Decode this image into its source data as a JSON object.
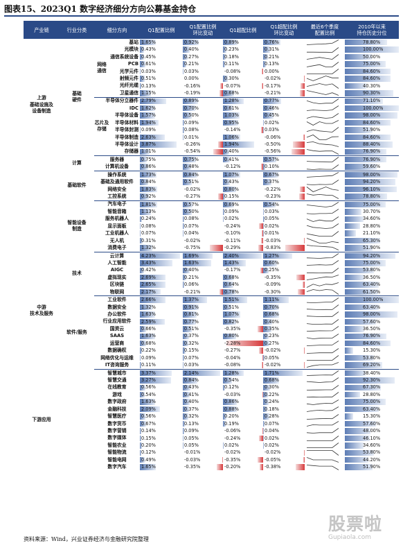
{
  "title": "图表15、2023Q1 数字经济细分方向公募基金持仓",
  "source": "资料来源：Wind，兴业证券经济与金融研究院整理",
  "watermark": {
    "big": "股票啦",
    "small": "Gupiaola.com"
  },
  "headers": [
    "产业链",
    "行业分类",
    "细分方向",
    "Q1配置比例",
    "Q1配置比例\n环比变动",
    "Q1超配比例",
    "Q1超配比例\n环比变动",
    "最近6个季度\n配置比例",
    "2010年以来\n持仓历史分位"
  ],
  "groups": {
    "upstream": "上游\n基础设施及\n设备制造",
    "midstream": "中游\n技术及服务",
    "downstream": "下游应用",
    "hardware": "基础\n硬件",
    "network": "网络\n通信",
    "chip": "芯片及\n存储",
    "compute": "计算",
    "software": "基础软件",
    "devices": "智能设备\n制造",
    "tech": "技术",
    "service": "软件/服务"
  },
  "rows": [
    [
      "基站",
      "1.65%",
      "0.92%",
      "0.89%",
      "0.76%",
      "78.80%"
    ],
    [
      "光模块",
      "0.43%",
      "0.40%",
      "0.23%",
      "0.31%",
      "100.00%"
    ],
    [
      "通信系统设备",
      "0.45%",
      "0.27%",
      "0.18%",
      "0.21%",
      "50.00%"
    ],
    [
      "PCB",
      "0.61%",
      "0.21%",
      "0.11%",
      "0.13%",
      "75.00%"
    ],
    [
      "光学元件",
      "0.03%",
      "0.03%",
      "-0.08%",
      "0.00%",
      "84.60%"
    ],
    [
      "射频元件",
      "0.51%",
      "0.00%",
      "0.30%",
      "-0.02%",
      "84.60%"
    ],
    [
      "光纤光缆",
      "0.13%",
      "-0.16%",
      "-0.07%",
      "-0.17%",
      "40.30%"
    ],
    [
      "卫星通信",
      "1.15%",
      "-0.19%",
      "0.68%",
      "-0.21%",
      "90.30%"
    ],
    [
      "半导体分立器件",
      "2.79%",
      "0.89%",
      "1.28%",
      "0.77%",
      "71.10%"
    ],
    [
      "IDC",
      "1.62%",
      "0.70%",
      "0.61%",
      "0.46%",
      "100.00%"
    ],
    [
      "半导体设备",
      "1.57%",
      "0.50%",
      "1.03%",
      "0.45%",
      "98.00%"
    ],
    [
      "半导体材料",
      "1.94%",
      "0.09%",
      "0.95%",
      "0.02%",
      "84.60%"
    ],
    [
      "半导体封测",
      "0.09%",
      "0.08%",
      "-0.14%",
      "0.03%",
      "51.90%"
    ],
    [
      "半导体制造",
      "2.63%",
      "0.01%",
      "1.06%",
      "-0.06%",
      "84.60%"
    ],
    [
      "半导体设计",
      "3.87%",
      "-0.26%",
      "1.94%",
      "-0.50%",
      "88.40%"
    ],
    [
      "存储器",
      "1.01%",
      "-0.54%",
      "0.40%",
      "-0.56%",
      "76.90%"
    ],
    [
      "服务器",
      "0.75%",
      "0.75%",
      "0.41%",
      "0.57%",
      "76.90%"
    ],
    [
      "计算机设备",
      "0.86%",
      "0.48%",
      "-0.12%",
      "0.10%",
      "59.60%"
    ],
    [
      "操作系统",
      "1.73%",
      "0.84%",
      "1.07%",
      "0.67%",
      "98.00%"
    ],
    [
      "基础及通用软件",
      "0.84%",
      "0.51%",
      "0.43%",
      "0.37%",
      "94.20%"
    ],
    [
      "网络安全",
      "1.83%",
      "-0.02%",
      "0.80%",
      "-0.22%",
      "96.10%"
    ],
    [
      "工控系统",
      "0.92%",
      "-0.27%",
      "0.15%",
      "-0.23%",
      "78.80%"
    ],
    [
      "汽车电子",
      "1.81%",
      "0.57%",
      "0.69%",
      "0.54%",
      "75.00%"
    ],
    [
      "智能音箱",
      "1.13%",
      "0.50%",
      "0.09%",
      "0.03%",
      "30.70%"
    ],
    [
      "服务机器人",
      "0.24%",
      "0.08%",
      "0.02%",
      "0.05%",
      "34.60%"
    ],
    [
      "显示面板",
      "0.08%",
      "0.07%",
      "-0.24%",
      "0.02%",
      "28.80%"
    ],
    [
      "工业机器人",
      "0.07%",
      "0.04%",
      "-0.10%",
      "0.01%",
      "21.10%"
    ],
    [
      "无人机",
      "0.31%",
      "-0.02%",
      "-0.11%",
      "-0.03%",
      "65.30%"
    ],
    [
      "消费电子",
      "1.32%",
      "-0.75%",
      "-0.29%",
      "-0.83%",
      "51.90%"
    ],
    [
      "云计算",
      "4.23%",
      "1.69%",
      "2.40%",
      "1.27%",
      "94.20%"
    ],
    [
      "人工智能",
      "3.43%",
      "1.63%",
      "1.43%",
      "0.60%",
      "75.00%"
    ],
    [
      "AIGC",
      "0.42%",
      "0.40%",
      "-0.17%",
      "0.25%",
      "53.80%"
    ],
    [
      "虚拟现实",
      "2.69%",
      "0.21%",
      "0.68%",
      "-0.35%",
      "36.50%"
    ],
    [
      "区块链",
      "2.65%",
      "0.06%",
      "0.64%",
      "-0.09%",
      "63.40%"
    ],
    [
      "物联网",
      "2.17%",
      "-0.21%",
      "0.78%",
      "-0.30%",
      "61.50%"
    ],
    [
      "工业软件",
      "2.66%",
      "1.37%",
      "1.51%",
      "1.11%",
      "100.00%"
    ],
    [
      "数据安全",
      "1.32%",
      "0.91%",
      "0.51%",
      "0.70%",
      "63.40%"
    ],
    [
      "办公软件",
      "1.63%",
      "0.81%",
      "1.07%",
      "0.68%",
      "98.00%"
    ],
    [
      "行业应用软件",
      "2.59%",
      "0.77%",
      "0.82%",
      "0.40%",
      "57.60%"
    ],
    [
      "国资云",
      "0.66%",
      "0.51%",
      "-0.35%",
      "0.35%",
      "36.50%"
    ],
    [
      "SAAS",
      "1.63%",
      "0.37%",
      "0.80%",
      "0.23%",
      "76.90%"
    ],
    [
      "运营商",
      "0.68%",
      "0.32%",
      "-2.28%",
      "0.27%",
      "84.60%"
    ],
    [
      "数据确权",
      "0.22%",
      "0.15%",
      "-0.27%",
      "-0.02%",
      "15.30%"
    ],
    [
      "网络优化与运维",
      "0.09%",
      "0.07%",
      "-0.04%",
      "0.05%",
      "53.80%"
    ],
    [
      "IT咨询服务",
      "0.11%",
      "0.03%",
      "-0.08%",
      "-0.02%",
      "69.20%"
    ],
    [
      "智慧城市",
      "3.37%",
      "2.14%",
      "1.28%",
      "1.71%",
      "38.40%"
    ],
    [
      "智慧交通",
      "3.27%",
      "0.84%",
      "0.54%",
      "0.68%",
      "92.30%"
    ],
    [
      "在线教育",
      "0.56%",
      "0.43%",
      "0.12%",
      "0.30%",
      "67.30%"
    ],
    [
      "游戏",
      "0.54%",
      "0.41%",
      "-0.03%",
      "0.22%",
      "28.80%"
    ],
    [
      "数字政府",
      "1.63%",
      "0.40%",
      "0.86%",
      "0.24%",
      "75.00%"
    ],
    [
      "金融科技",
      "2.09%",
      "0.37%",
      "0.88%",
      "0.18%",
      "63.40%"
    ],
    [
      "智慧医疗",
      "0.56%",
      "0.32%",
      "0.20%",
      "0.28%",
      "15.30%"
    ],
    [
      "数字货币",
      "0.67%",
      "0.13%",
      "0.19%",
      "0.07%",
      "57.60%"
    ],
    [
      "数字营销",
      "0.14%",
      "0.09%",
      "-0.06%",
      "0.04%",
      "48.00%"
    ],
    [
      "数字媒体",
      "0.15%",
      "0.05%",
      "-0.24%",
      "0.02%",
      "46.10%"
    ],
    [
      "智能农业",
      "0.20%",
      "0.05%",
      "0.02%",
      "0.02%",
      "34.60%"
    ],
    [
      "智能物流",
      "0.12%",
      "-0.01%",
      "-0.02%",
      "-0.02%",
      "53.80%"
    ],
    [
      "智能电网",
      "0.49%",
      "-0.03%",
      "-0.35%",
      "-0.05%",
      "44.20%"
    ],
    [
      "数字汽车",
      "1.65%",
      "-0.35%",
      "-0.20%",
      "-0.38%",
      "51.90%"
    ]
  ],
  "sparklines": [
    [
      0.3,
      0.4,
      0.5,
      0.55,
      0.7,
      1.65
    ],
    [
      0.05,
      0.05,
      0.04,
      0.04,
      0.03,
      0.43
    ],
    [
      0.2,
      0.25,
      0.3,
      0.25,
      0.2,
      0.45
    ],
    [
      0.4,
      0.45,
      0.5,
      0.4,
      0.4,
      0.61
    ],
    [
      0.0,
      0.0,
      0.0,
      0.0,
      0.0,
      0.03
    ],
    [
      0.5,
      0.45,
      0.5,
      0.55,
      0.51,
      0.51
    ],
    [
      0.2,
      0.25,
      0.3,
      0.25,
      0.29,
      0.13
    ],
    [
      1.5,
      1.4,
      1.3,
      1.2,
      1.34,
      1.15
    ],
    [
      2.4,
      2.0,
      1.8,
      1.9,
      1.9,
      2.79
    ],
    [
      0.8,
      0.9,
      0.85,
      0.8,
      0.92,
      1.62
    ],
    [
      1.0,
      1.2,
      1.1,
      1.0,
      1.07,
      1.57
    ],
    [
      1.9,
      1.8,
      1.9,
      1.85,
      1.85,
      1.94
    ],
    [
      0.02,
      0.05,
      0.03,
      0.02,
      0.01,
      0.09
    ],
    [
      2.6,
      2.7,
      2.5,
      2.5,
      2.62,
      2.63
    ],
    [
      4.5,
      4.6,
      4.3,
      4.2,
      4.13,
      3.87
    ],
    [
      1.8,
      1.6,
      1.5,
      1.55,
      1.55,
      1.01
    ],
    [
      0.1,
      0.05,
      0.03,
      0.02,
      0.0,
      0.75
    ],
    [
      0.4,
      0.35,
      0.4,
      0.38,
      0.38,
      0.86
    ],
    [
      0.5,
      0.6,
      0.7,
      0.8,
      0.89,
      1.73
    ],
    [
      0.3,
      0.25,
      0.3,
      0.28,
      0.33,
      0.84
    ],
    [
      1.9,
      1.8,
      1.85,
      1.9,
      1.85,
      1.83
    ],
    [
      1.3,
      1.2,
      1.25,
      1.2,
      1.19,
      0.92
    ],
    [
      1.4,
      1.3,
      1.2,
      1.1,
      1.24,
      1.81
    ],
    [
      0.6,
      0.55,
      0.6,
      0.6,
      0.63,
      1.13
    ],
    [
      0.2,
      0.15,
      0.18,
      0.16,
      0.16,
      0.24
    ],
    [
      0.05,
      0.02,
      0.01,
      0.0,
      0.01,
      0.08
    ],
    [
      0.05,
      0.04,
      0.03,
      0.03,
      0.03,
      0.07
    ],
    [
      0.4,
      0.35,
      0.3,
      0.3,
      0.33,
      0.31
    ],
    [
      2.6,
      2.4,
      2.3,
      2.2,
      2.07,
      1.32
    ],
    [
      2.5,
      2.4,
      2.3,
      2.5,
      2.54,
      4.23
    ],
    [
      1.6,
      1.7,
      1.8,
      1.7,
      1.8,
      3.43
    ],
    [
      0.02,
      0.02,
      0.01,
      0.02,
      0.02,
      0.42
    ],
    [
      2.2,
      2.3,
      2.4,
      2.5,
      2.48,
      2.69
    ],
    [
      2.5,
      2.6,
      2.55,
      2.6,
      2.59,
      2.65
    ],
    [
      2.3,
      2.4,
      2.35,
      2.4,
      2.38,
      2.17
    ],
    [
      1.2,
      1.1,
      1.2,
      1.3,
      1.29,
      2.66
    ],
    [
      0.5,
      0.45,
      0.4,
      0.42,
      0.41,
      1.32
    ],
    [
      0.9,
      0.85,
      0.8,
      0.82,
      0.82,
      1.63
    ],
    [
      1.9,
      1.8,
      1.8,
      1.85,
      1.82,
      2.59
    ],
    [
      0.1,
      0.12,
      0.15,
      0.14,
      0.15,
      0.66
    ],
    [
      1.3,
      1.2,
      1.25,
      1.26,
      1.26,
      1.63
    ],
    [
      0.3,
      0.32,
      0.35,
      0.36,
      0.36,
      0.68
    ],
    [
      0.05,
      0.06,
      0.07,
      0.07,
      0.07,
      0.22
    ],
    [
      0.02,
      0.02,
      0.02,
      0.02,
      0.02,
      0.09
    ],
    [
      0.05,
      0.07,
      0.08,
      0.08,
      0.08,
      0.11
    ],
    [
      1.0,
      1.1,
      1.2,
      1.3,
      1.23,
      3.37
    ],
    [
      2.5,
      2.4,
      2.3,
      2.4,
      2.43,
      3.27
    ],
    [
      0.1,
      0.11,
      0.12,
      0.13,
      0.13,
      0.56
    ],
    [
      0.12,
      0.13,
      0.12,
      0.13,
      0.13,
      0.54
    ],
    [
      1.2,
      1.1,
      1.2,
      1.25,
      1.23,
      1.63
    ],
    [
      1.6,
      1.7,
      1.75,
      1.7,
      1.72,
      2.09
    ],
    [
      0.2,
      0.22,
      0.24,
      0.25,
      0.24,
      0.56
    ],
    [
      0.5,
      0.55,
      0.54,
      0.54,
      0.54,
      0.67
    ],
    [
      0.05,
      0.04,
      0.05,
      0.05,
      0.05,
      0.14
    ],
    [
      0.1,
      0.1,
      0.1,
      0.1,
      0.1,
      0.15
    ],
    [
      0.15,
      0.15,
      0.15,
      0.15,
      0.15,
      0.2
    ],
    [
      0.13,
      0.13,
      0.13,
      0.13,
      0.13,
      0.12
    ],
    [
      0.55,
      0.52,
      0.52,
      0.52,
      0.52,
      0.49
    ],
    [
      2.1,
      2.05,
      2.0,
      2.0,
      2.0,
      1.65
    ]
  ],
  "colors": {
    "header": "#2a4a87",
    "bar_pos": "#5d7db5",
    "bar_neg": "#d7393b",
    "spark": "#333333"
  }
}
